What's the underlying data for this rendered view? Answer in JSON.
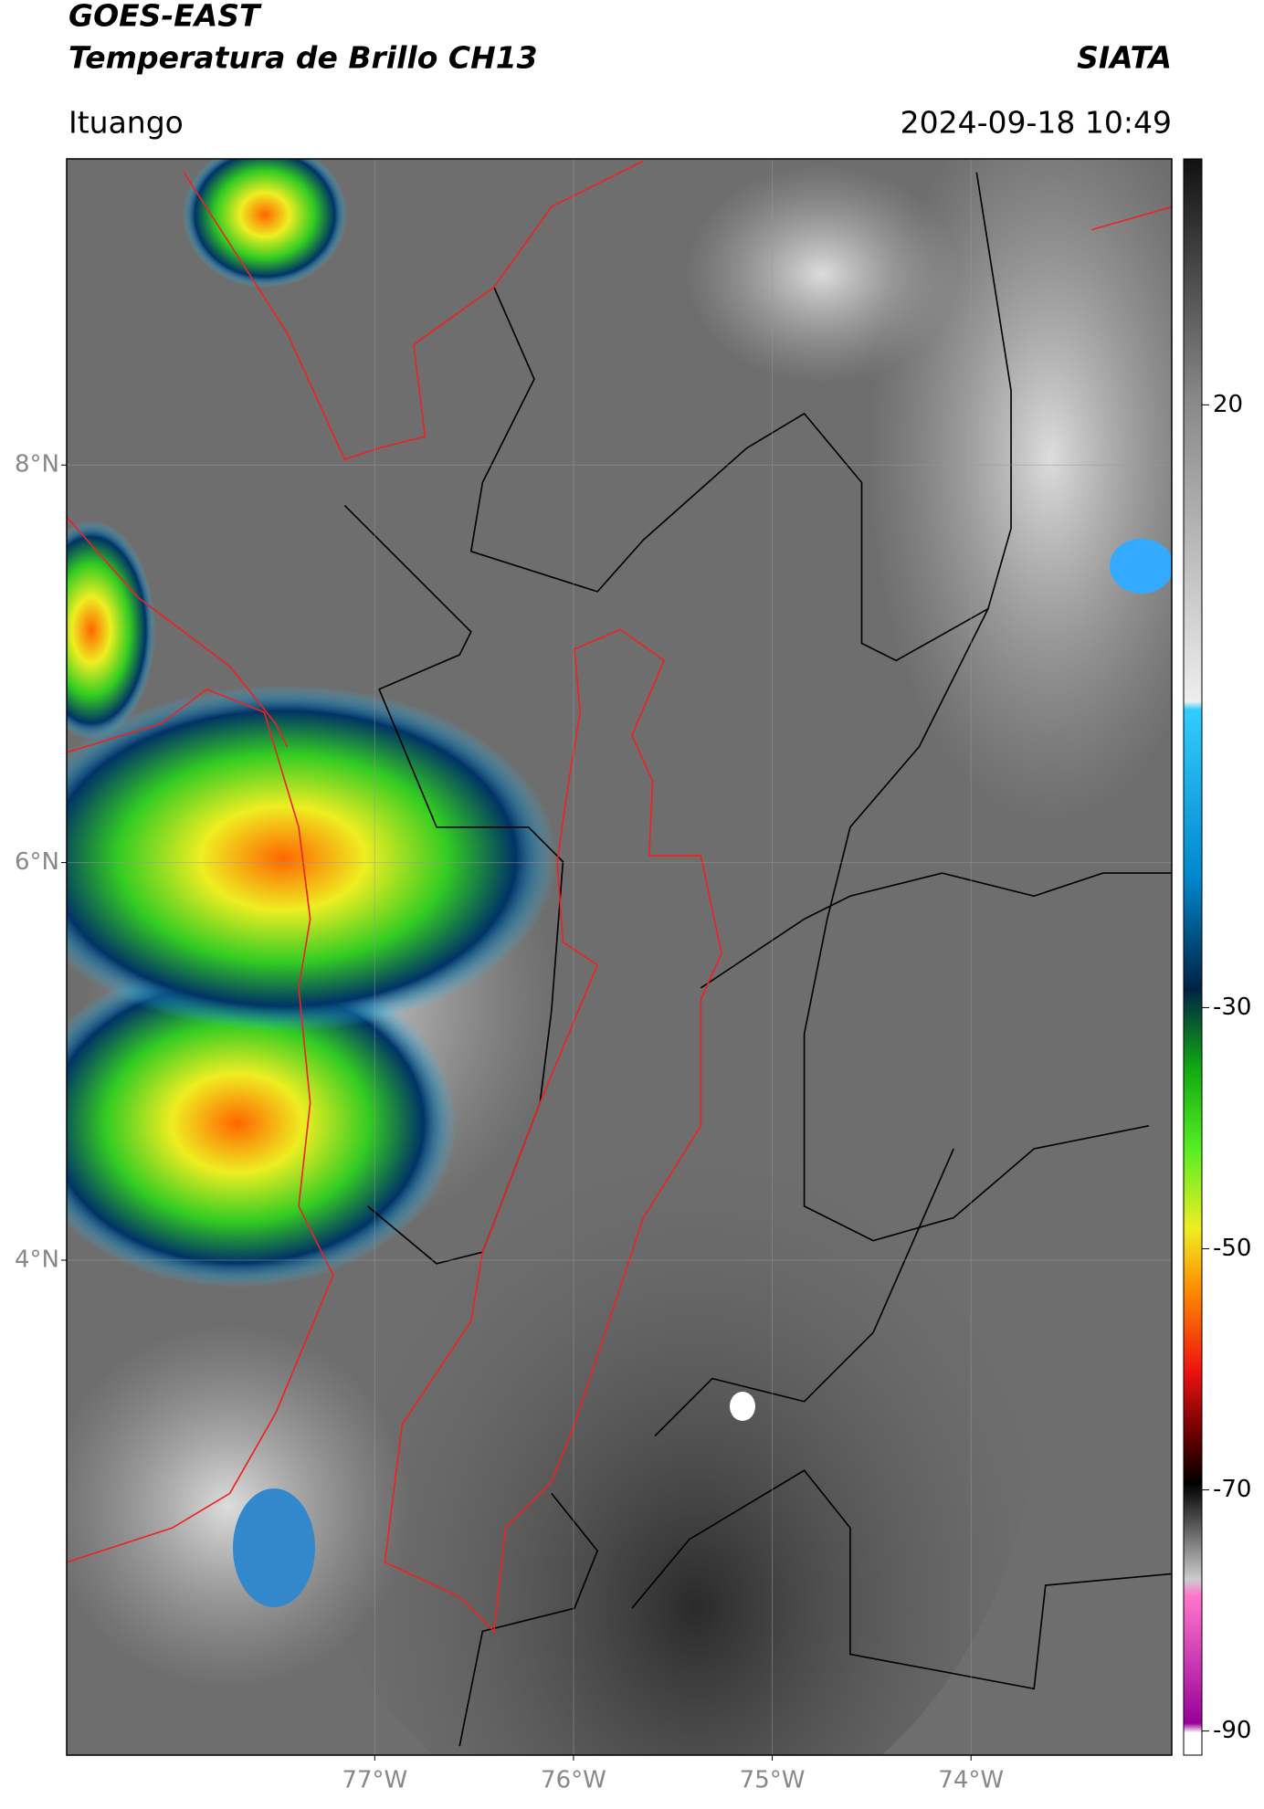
{
  "header": {
    "title": "GOES-EAST",
    "subtitle": "Temperatura de Brillo CH13",
    "source": "SIATA",
    "location": "Ituango",
    "datetime": "2024-09-18 10:49"
  },
  "map": {
    "xlim": [
      -78.55,
      -72.99
    ],
    "ylim": [
      1.51,
      9.54
    ],
    "grid": true,
    "xticks": [
      {
        "value": -77,
        "label": "77°W"
      },
      {
        "value": -76,
        "label": "76°W"
      },
      {
        "value": -75,
        "label": "75°W"
      },
      {
        "value": -74,
        "label": "74°W"
      }
    ],
    "yticks": [
      {
        "value": 8,
        "label": "8°N"
      },
      {
        "value": 6,
        "label": "6°N"
      },
      {
        "value": 4,
        "label": "4°N"
      }
    ]
  },
  "colorbar": {
    "lim": [
      -92,
      40.4
    ],
    "ticks": [
      20,
      -30,
      -50,
      -70,
      -90
    ]
  }
}
